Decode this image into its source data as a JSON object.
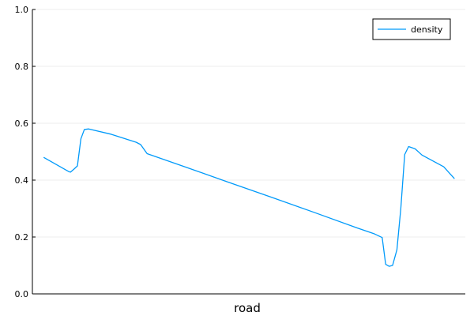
{
  "chart_data": {
    "type": "line",
    "title": "",
    "xlabel": "road",
    "ylabel": "",
    "ylim": [
      0,
      1
    ],
    "xlim": [
      0,
      100
    ],
    "yticks": [
      "0.0",
      "0.2",
      "0.4",
      "0.6",
      "0.8",
      "1.0"
    ],
    "ytick_values": [
      0,
      0.2,
      0.4,
      0.6,
      0.8,
      1.0
    ],
    "grid": true,
    "legend_position": "top-right",
    "series": [
      {
        "name": "density",
        "color": "#009AFA",
        "x": [
          2.6,
          8.4,
          8.8,
          9.7,
          10.4,
          11.2,
          12.0,
          13.0,
          18,
          24,
          25,
          25.8,
          26.5,
          35,
          45,
          55,
          65,
          75,
          79,
          80.8,
          81.6,
          82.4,
          83.2,
          84.2,
          85.1,
          86.0,
          86.9,
          88.4,
          90,
          95,
          97.5
        ],
        "y": [
          0.48,
          0.43,
          0.428,
          0.44,
          0.45,
          0.545,
          0.578,
          0.58,
          0.562,
          0.533,
          0.525,
          0.508,
          0.493,
          0.448,
          0.394,
          0.341,
          0.287,
          0.232,
          0.211,
          0.198,
          0.104,
          0.097,
          0.1,
          0.155,
          0.3,
          0.49,
          0.518,
          0.51,
          0.488,
          0.447,
          0.405
        ]
      }
    ]
  }
}
